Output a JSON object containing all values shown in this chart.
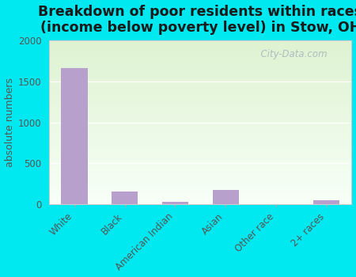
{
  "title": "Breakdown of poor residents within races\n(income below poverty level) in Stow, OH",
  "categories": [
    "White",
    "Black",
    "American Indian",
    "Asian",
    "Other race",
    "2+ races"
  ],
  "values": [
    1670,
    150,
    25,
    175,
    0,
    50
  ],
  "bar_color": "#b8a0cc",
  "ylabel": "absolute numbers",
  "ylim": [
    0,
    2000
  ],
  "yticks": [
    0,
    500,
    1000,
    1500,
    2000
  ],
  "background_color": "#00e8f0",
  "title_fontsize": 12.5,
  "axis_label_fontsize": 9,
  "tick_fontsize": 8.5,
  "watermark": "City-Data.com"
}
